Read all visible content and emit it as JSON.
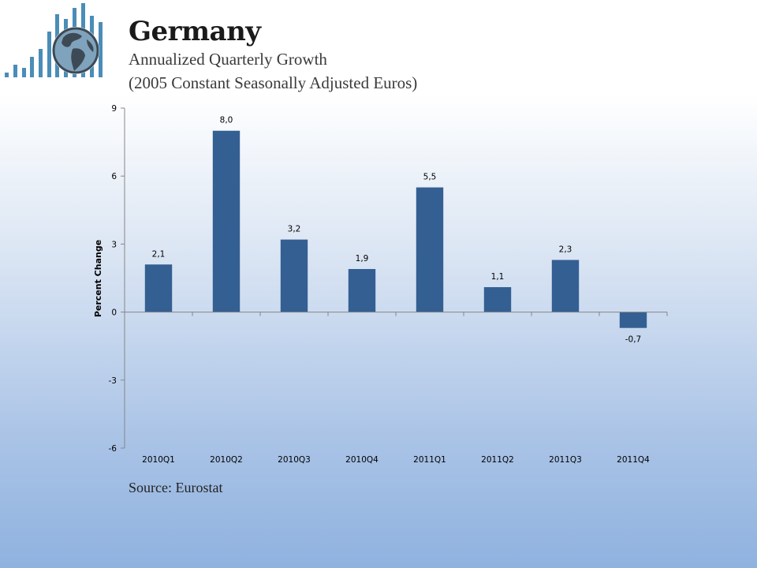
{
  "header": {
    "title": "Germany",
    "subtitle_line1": "Annualized Quarterly Growth",
    "subtitle_line2": "(2005 Constant Seasonally Adjusted Euros)"
  },
  "logo": {
    "icon": "globe-with-bars-icon",
    "bar_color": "#4a8db8",
    "globe_color": "#3d4a55"
  },
  "source_text": "Source: Eurostat",
  "chart_data": {
    "type": "bar",
    "categories": [
      "2010Q1",
      "2010Q2",
      "2010Q3",
      "2010Q4",
      "2011Q1",
      "2011Q2",
      "2011Q3",
      "2011Q4"
    ],
    "values": [
      2.1,
      8.0,
      3.2,
      1.9,
      5.5,
      1.1,
      2.3,
      -0.7
    ],
    "data_labels": [
      "2,1",
      "8,0",
      "3,2",
      "1,9",
      "5,5",
      "1,1",
      "2,3",
      "-0,7"
    ],
    "ylabel": "Percent Change",
    "xlabel": "",
    "ylim": [
      -6,
      9
    ],
    "yticks": [
      9,
      6,
      3,
      0,
      -3,
      -6
    ],
    "ytick_labels": [
      "9",
      "6",
      "3",
      "0",
      "-3",
      "-6"
    ],
    "bar_color": "#345f92",
    "grid": false,
    "legend": "none"
  }
}
